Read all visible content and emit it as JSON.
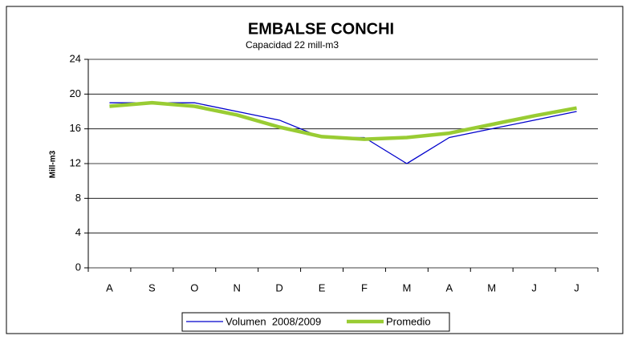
{
  "chart_data": {
    "type": "line",
    "title": "EMBALSE CONCHI",
    "subtitle": "Capacidad 22 mill-m3",
    "y_label": "Mill-m3",
    "categories": [
      "A",
      "S",
      "O",
      "N",
      "D",
      "E",
      "F",
      "M",
      "A",
      "M",
      "J",
      "J"
    ],
    "series": [
      {
        "name": "Volumen  2008/2009",
        "color": "#0000cc",
        "width": 1.3,
        "values": [
          19,
          19,
          19,
          18,
          17,
          15,
          15,
          12,
          15,
          16,
          17,
          18
        ]
      },
      {
        "name": "Promedio",
        "color": "#99cc33",
        "width": 4.5,
        "values": [
          18.6,
          19.0,
          18.6,
          17.6,
          16.2,
          15.1,
          14.8,
          15.0,
          15.5,
          16.5,
          17.5,
          18.4
        ]
      }
    ],
    "ylim": [
      0,
      24
    ],
    "yticks": [
      0,
      4,
      8,
      12,
      16,
      20,
      24
    ],
    "grid": true
  }
}
